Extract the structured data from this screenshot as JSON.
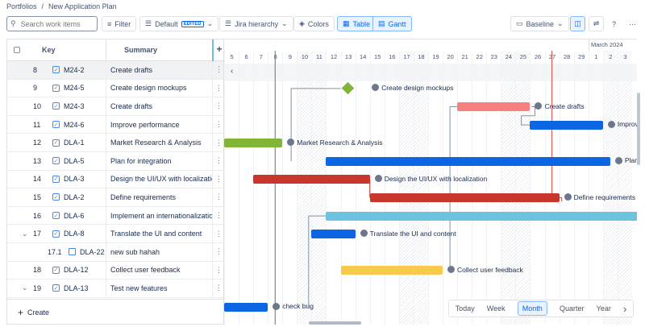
{
  "breadcrumb": [
    "Portfolios",
    "New Application Plan"
  ],
  "toolbar": {
    "search_placeholder": "Search work items",
    "filter": "Filter",
    "default": "Default",
    "edited": "EDITED",
    "hierarchy": "Jira hierarchy",
    "colors": "Colors",
    "table": "Table",
    "gantt": "Gantt",
    "baseline": "Baseline",
    "help": "?",
    "more": "···"
  },
  "table": {
    "headers": {
      "key": "Key",
      "summary": "Summary",
      "add": "+"
    },
    "rows": [
      {
        "num": "8",
        "key": "M24-2",
        "summary": "Create drafts",
        "type": "task"
      },
      {
        "num": "9",
        "key": "M24-5",
        "summary": "Create design mockups",
        "type": "task"
      },
      {
        "num": "10",
        "key": "M24-3",
        "summary": "Create drafts",
        "type": "task"
      },
      {
        "num": "11",
        "key": "M24-6",
        "summary": "Improve performance",
        "type": "task"
      },
      {
        "num": "12",
        "key": "DLA-1",
        "summary": "Market Research & Analysis",
        "type": "task"
      },
      {
        "num": "13",
        "key": "DLA-5",
        "summary": "Plan for integration",
        "type": "task"
      },
      {
        "num": "14",
        "key": "DLA-3",
        "summary": "Design the UI/UX with localizatio...",
        "type": "task"
      },
      {
        "num": "15",
        "key": "DLA-2",
        "summary": "Define requirements",
        "type": "task"
      },
      {
        "num": "16",
        "key": "DLA-6",
        "summary": "Implement an internationalizatio...",
        "type": "task"
      },
      {
        "num": "17",
        "key": "DLA-8",
        "summary": "Translate the UI and content",
        "type": "task",
        "expand": true
      },
      {
        "num": "17.1",
        "key": "DLA-22",
        "summary": "new sub hahah",
        "type": "subtask"
      },
      {
        "num": "18",
        "key": "DLA-12",
        "summary": "Collect user feedback",
        "type": "task"
      },
      {
        "num": "19",
        "key": "DLA-13",
        "summary": "Test new features",
        "type": "task",
        "expand": true
      }
    ],
    "create": "Create"
  },
  "timeline": {
    "month": "March 2024",
    "days": [
      "5",
      "6",
      "7",
      "8",
      "9",
      "10",
      "11",
      "12",
      "13",
      "14",
      "15",
      "16",
      "17",
      "18",
      "19",
      "20",
      "21",
      "22",
      "23",
      "24",
      "25",
      "26",
      "27",
      "28",
      "29",
      "1",
      "2",
      "3"
    ],
    "weekends": [
      5,
      6,
      12,
      13,
      19,
      20,
      26,
      27
    ],
    "today_index": 22,
    "bars": [
      {
        "row": 1,
        "milestone": true,
        "start": 8,
        "end": 9,
        "color": "#82b536",
        "label": "Create design mockups"
      },
      {
        "row": 2,
        "start": 16,
        "end": 21,
        "color": "#f87f7f",
        "label": "Create drafts"
      },
      {
        "row": 3,
        "start": 21,
        "end": 26,
        "color": "#0c66e4",
        "label": "Improve performance"
      },
      {
        "row": 4,
        "start": 0,
        "end": 4,
        "color": "#82b536",
        "label": "Market Research & Analysis"
      },
      {
        "row": 5,
        "start": 7,
        "end": 26.5,
        "color": "#0c66e4",
        "label": "Plan for integration"
      },
      {
        "row": 6,
        "start": 2,
        "end": 10,
        "color": "#c9372c",
        "label": "Design the UI/UX with localization"
      },
      {
        "row": 7,
        "start": 10,
        "end": 23,
        "color": "#c9372c",
        "label": "Define requirements"
      },
      {
        "row": 8,
        "start": 7,
        "end": 29,
        "color": "#6cc3e0",
        "label": ""
      },
      {
        "row": 9,
        "start": 6,
        "end": 9,
        "color": "#0c66e4",
        "label": "Translate the UI and content"
      },
      {
        "row": 11,
        "start": 8,
        "end": 15,
        "color": "#f8c94a",
        "label": "Collect user feedback"
      },
      {
        "row": 13,
        "start": 0,
        "end": 3,
        "color": "#0c66e4",
        "label": "check bug"
      }
    ]
  },
  "zoom": {
    "options": [
      "Today",
      "Week",
      "Month",
      "Quarter",
      "Year"
    ],
    "selected": "Month"
  }
}
